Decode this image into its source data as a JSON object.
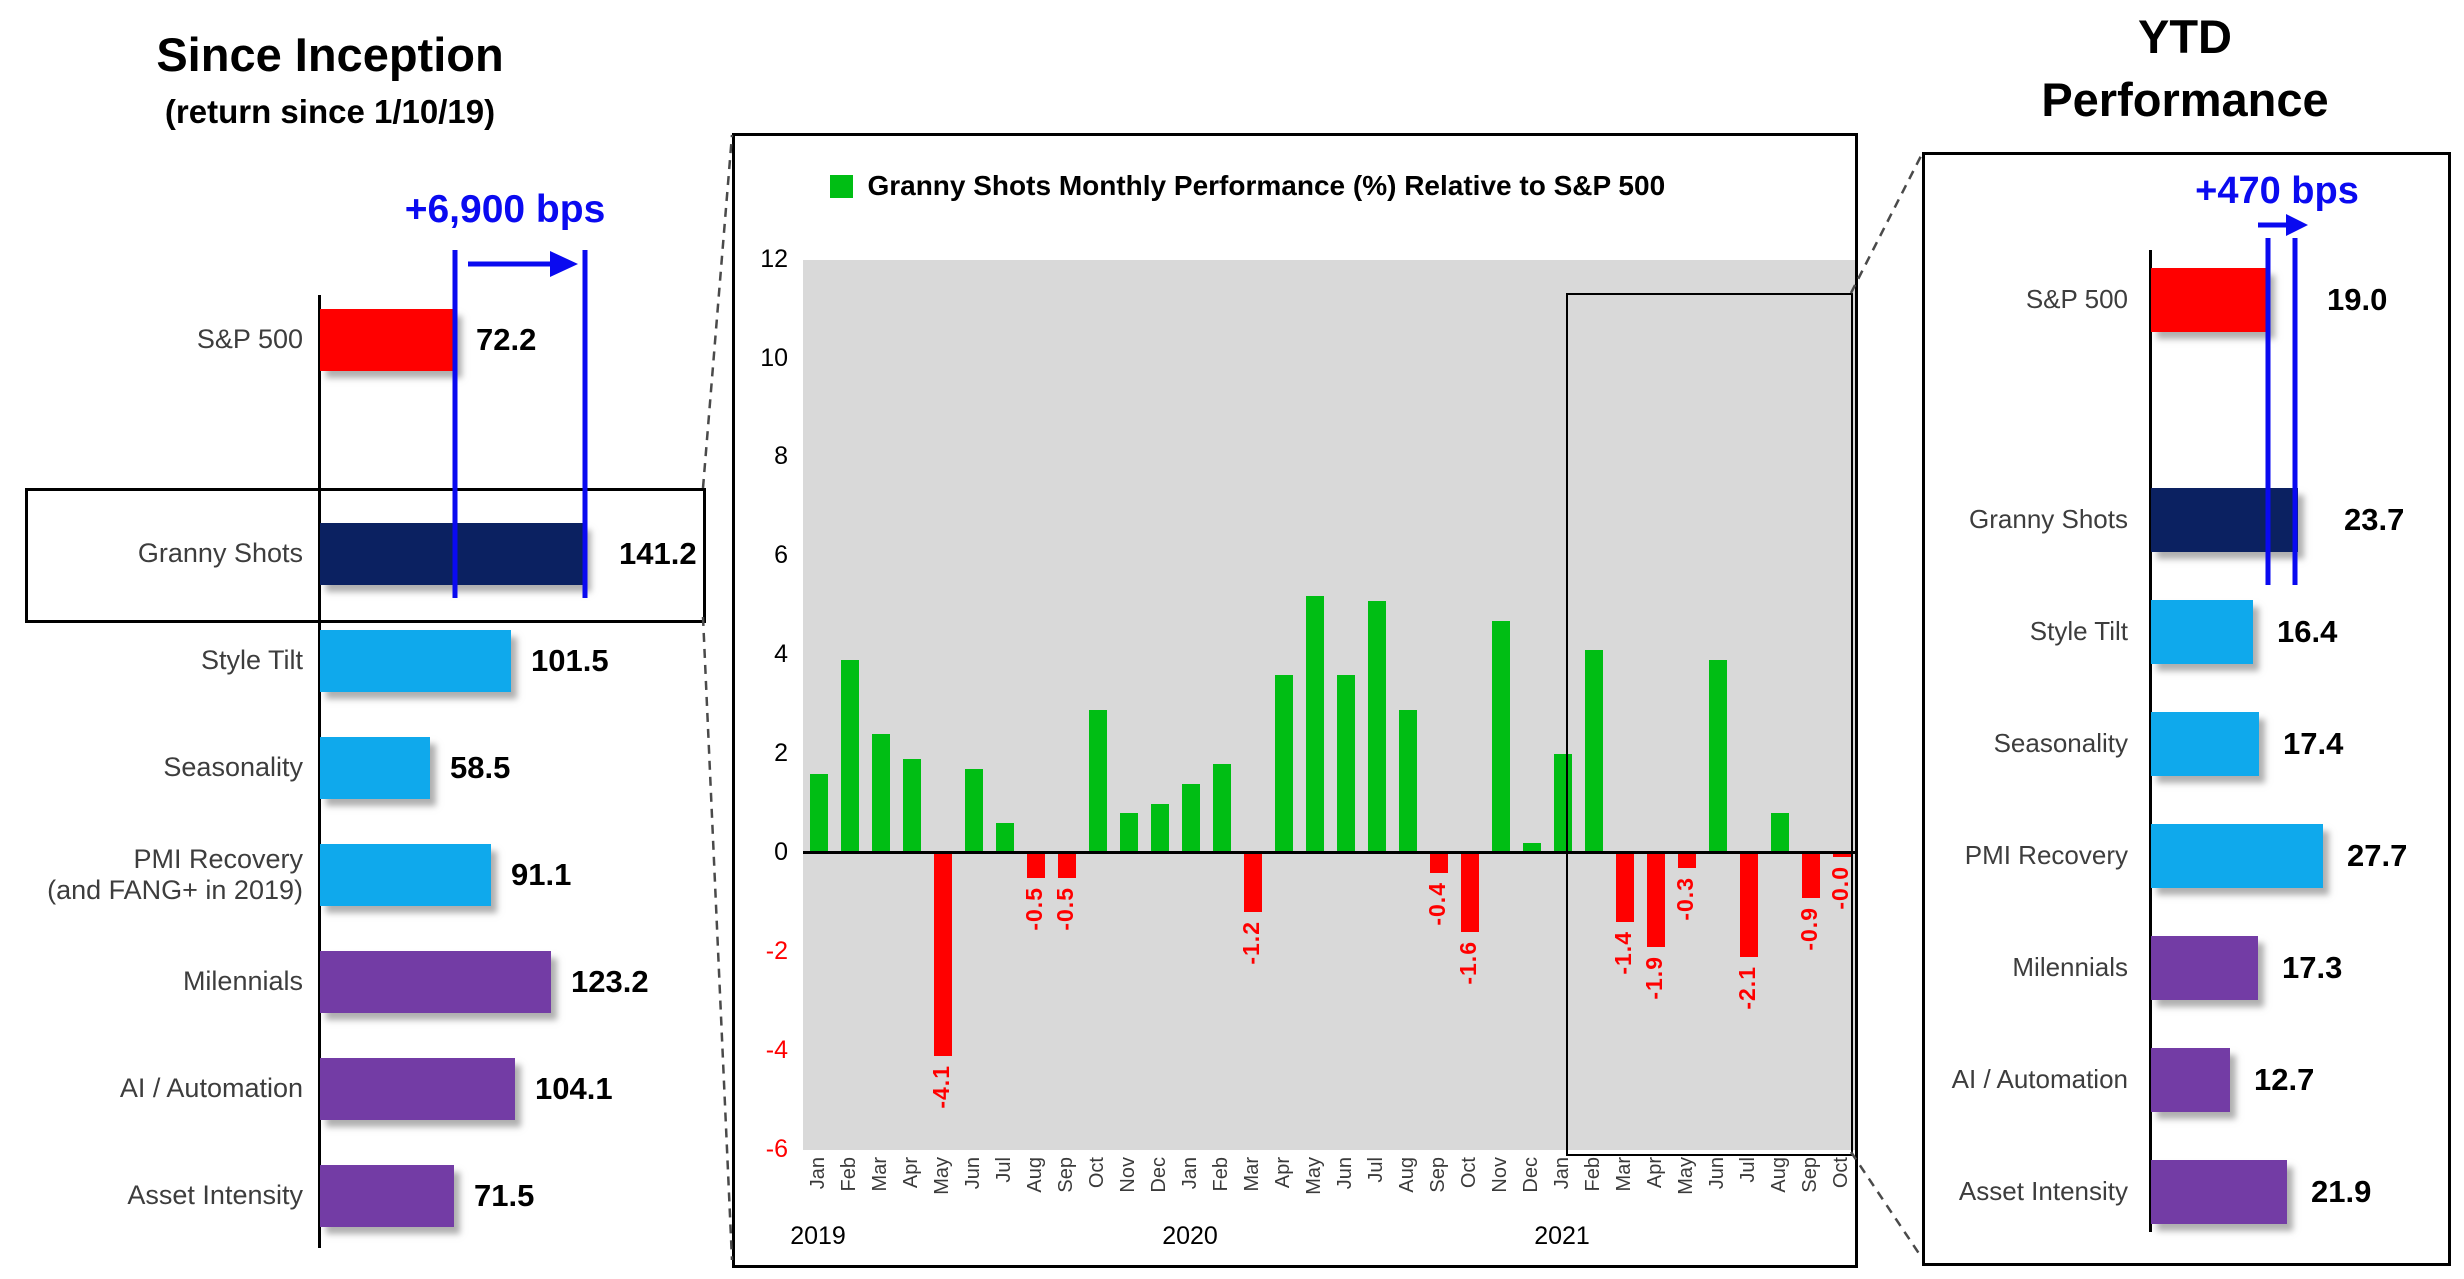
{
  "accent_colors": {
    "blue_annotation": "#0A0AF0",
    "green": "#00BE14",
    "red": "#FF0000",
    "light_blue": "#0FA9EC",
    "navy": "#0B2161",
    "purple": "#733CA5",
    "plot_bg": "#D9D9D9",
    "negative_text": "#FF0000"
  },
  "chart_data": [
    {
      "id": "since-inception",
      "type": "bar",
      "orientation": "horizontal",
      "title": "Since Inception",
      "subtitle": "(return since 1/10/19)",
      "annotation": "+6,900 bps",
      "categories": [
        "S&P 500",
        "Granny Shots",
        "Style Tilt",
        "Seasonality",
        "PMI Recovery\n(and FANG+ in 2019)",
        "Milennials",
        "AI / Automation",
        "Asset Intensity"
      ],
      "values": [
        72.2,
        141.2,
        101.5,
        58.5,
        91.1,
        123.2,
        104.1,
        71.5
      ],
      "value_labels": [
        "72.2",
        "141.2",
        "101.5",
        "58.5",
        "91.1",
        "123.2",
        "104.1",
        "71.5"
      ],
      "color_keys": [
        "red",
        "navy",
        "light_blue",
        "light_blue",
        "light_blue",
        "purple",
        "purple",
        "purple"
      ],
      "highlighted_category": "Granny Shots",
      "grid": false
    },
    {
      "id": "monthly-relative-performance",
      "type": "bar",
      "title": "Granny Shots Monthly Performance (%) Relative to S&P 500",
      "legend_position": "top",
      "x_years": [
        "2019",
        "2020",
        "2021"
      ],
      "months": [
        "Jan",
        "Feb",
        "Mar",
        "Apr",
        "May",
        "Jun",
        "Jul",
        "Aug",
        "Sep",
        "Oct",
        "Nov",
        "Dec",
        "Jan",
        "Feb",
        "Mar",
        "Apr",
        "May",
        "Jun",
        "Jul",
        "Aug",
        "Sep",
        "Oct",
        "Nov",
        "Dec",
        "Jan",
        "Feb",
        "Mar",
        "Apr",
        "May",
        "Jun",
        "Jul",
        "Aug",
        "Sep",
        "Oct"
      ],
      "values": [
        1.6,
        3.9,
        2.4,
        1.9,
        -4.1,
        1.7,
        0.6,
        -0.5,
        -0.5,
        2.9,
        0.8,
        1.0,
        1.4,
        1.8,
        -1.2,
        3.6,
        5.2,
        3.6,
        5.1,
        2.9,
        -0.4,
        -1.6,
        4.7,
        0.2,
        2.0,
        4.1,
        -1.4,
        -1.9,
        -0.3,
        3.9,
        -2.1,
        0.8,
        -0.9,
        -0.0
      ],
      "value_labels": [
        "1.6",
        "3.9",
        "2.4",
        "1.9",
        "-4.1",
        "1.7",
        "0.6",
        "-0.5",
        "-0.5",
        "2.9",
        "0.8",
        "1.0",
        "1.4",
        "1.8",
        "-1.2",
        "3.6",
        "5.2",
        "3.6",
        "5.1",
        "2.9",
        "-0.4",
        "-1.6",
        "4.7",
        "0.2",
        "2.0",
        "4.1",
        "-1.4",
        "-1.9",
        "-0.3",
        "3.9",
        "-2.1",
        "0.8",
        "-0.9",
        "-0.0"
      ],
      "ylim": [
        -6,
        12
      ],
      "yticks": [
        12,
        10,
        8,
        6,
        4,
        2,
        0,
        -2,
        -4,
        -6
      ],
      "highlight_region": "2021",
      "grid": false
    },
    {
      "id": "ytd-performance",
      "type": "bar",
      "orientation": "horizontal",
      "title": "YTD Performance",
      "title_line1": "YTD",
      "title_line2": "Performance",
      "annotation": "+470 bps",
      "categories": [
        "S&P 500",
        "Granny Shots",
        "Style Tilt",
        "Seasonality",
        "PMI Recovery",
        "Milennials",
        "AI / Automation",
        "Asset Intensity"
      ],
      "values": [
        19.0,
        23.7,
        16.4,
        17.4,
        27.7,
        17.3,
        12.7,
        21.9
      ],
      "value_labels": [
        "19.0",
        "23.7",
        "16.4",
        "17.4",
        "27.7",
        "17.3",
        "12.7",
        "21.9"
      ],
      "color_keys": [
        "red",
        "navy",
        "light_blue",
        "light_blue",
        "light_blue",
        "purple",
        "purple",
        "purple"
      ],
      "highlighted_category": "Granny Shots",
      "grid": false
    }
  ]
}
